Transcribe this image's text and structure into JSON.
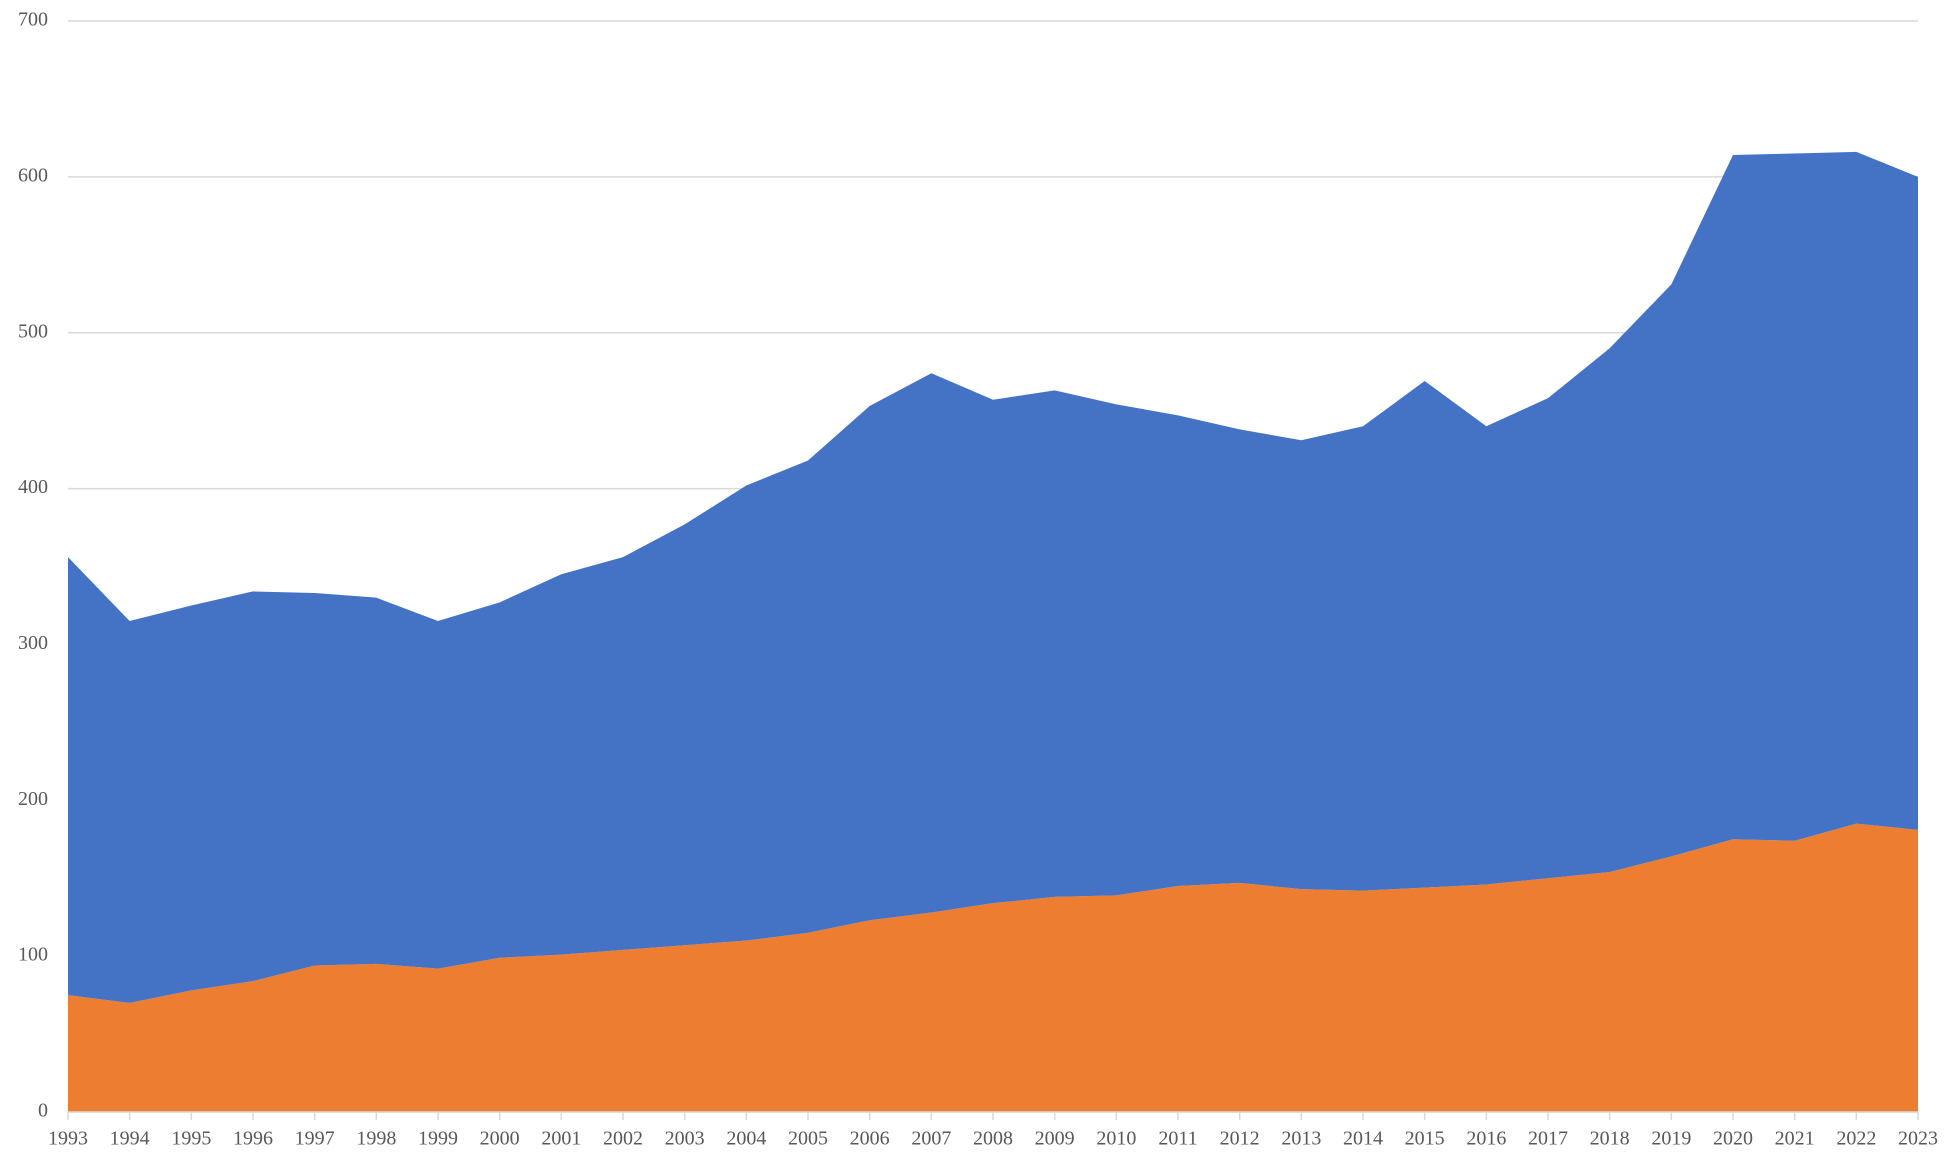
{
  "chart_data": {
    "type": "stacked_area",
    "categories": [
      "1993",
      "1994",
      "1995",
      "1996",
      "1997",
      "1998",
      "1999",
      "2000",
      "2001",
      "2002",
      "2003",
      "2004",
      "2005",
      "2006",
      "2007",
      "2008",
      "2009",
      "2010",
      "2011",
      "2012",
      "2013",
      "2014",
      "2015",
      "2016",
      "2017",
      "2018",
      "2019",
      "2020",
      "2021",
      "2022",
      "2023"
    ],
    "series": [
      {
        "color": "#ed7d31",
        "values": [
          75,
          70,
          78,
          84,
          94,
          95,
          92,
          99,
          101,
          104,
          107,
          110,
          115,
          123,
          128,
          134,
          138,
          139,
          145,
          147,
          143,
          142,
          144,
          146,
          150,
          154,
          164,
          175,
          174,
          185,
          181
        ]
      },
      {
        "color": "#4472c4",
        "values": [
          281,
          245,
          247,
          250,
          239,
          235,
          223,
          228,
          244,
          252,
          270,
          292,
          303,
          330,
          346,
          323,
          325,
          315,
          302,
          291,
          288,
          298,
          325,
          294,
          308,
          336,
          367,
          439,
          441,
          431,
          419
        ]
      }
    ],
    "ylim": [
      0,
      700
    ],
    "yticks": [
      0,
      100,
      200,
      300,
      400,
      500,
      600,
      700
    ],
    "grid": true
  }
}
